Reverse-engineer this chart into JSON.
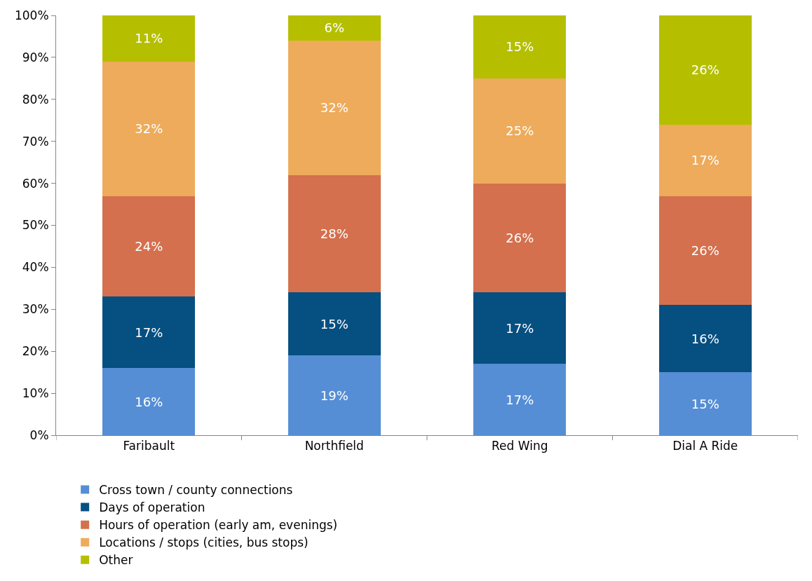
{
  "chart_data": {
    "type": "bar",
    "stacked": true,
    "categories": [
      "Faribault",
      "Northfield",
      "Red Wing",
      "Dial A Ride"
    ],
    "series": [
      {
        "name": "Cross town / county connections",
        "color": "#558ed5",
        "values": [
          16,
          19,
          17,
          15
        ],
        "value_labels": [
          "16%",
          "19%",
          "17%",
          "15%"
        ]
      },
      {
        "name": "Days of operation",
        "color": "#064f81",
        "values": [
          17,
          15,
          17,
          16
        ],
        "value_labels": [
          "17%",
          "15%",
          "17%",
          "16%"
        ]
      },
      {
        "name": "Hours of operation (early am, evenings)",
        "color": "#d4704d",
        "values": [
          24,
          28,
          26,
          26
        ],
        "value_labels": [
          "24%",
          "28%",
          "26%",
          "26%"
        ]
      },
      {
        "name": "Locations / stops (cities, bus stops)",
        "color": "#eeab5b",
        "values": [
          32,
          32,
          25,
          17
        ],
        "value_labels": [
          "32%",
          "32%",
          "25%",
          "17%"
        ]
      },
      {
        "name": "Other",
        "color": "#b5bf00",
        "values": [
          11,
          6,
          15,
          26
        ],
        "value_labels": [
          "11%",
          "6%",
          "15%",
          "26%"
        ]
      }
    ],
    "ylim": [
      0,
      100
    ],
    "yticks": [
      {
        "value": 0,
        "label": "0%"
      },
      {
        "value": 10,
        "label": "10%"
      },
      {
        "value": 20,
        "label": "20%"
      },
      {
        "value": 30,
        "label": "30%"
      },
      {
        "value": 40,
        "label": "40%"
      },
      {
        "value": 50,
        "label": "50%"
      },
      {
        "value": 60,
        "label": "60%"
      },
      {
        "value": 70,
        "label": "70%"
      },
      {
        "value": 80,
        "label": "80%"
      },
      {
        "value": 90,
        "label": "90%"
      },
      {
        "value": 100,
        "label": "100%"
      }
    ],
    "grid": false,
    "legend": "bottom"
  }
}
